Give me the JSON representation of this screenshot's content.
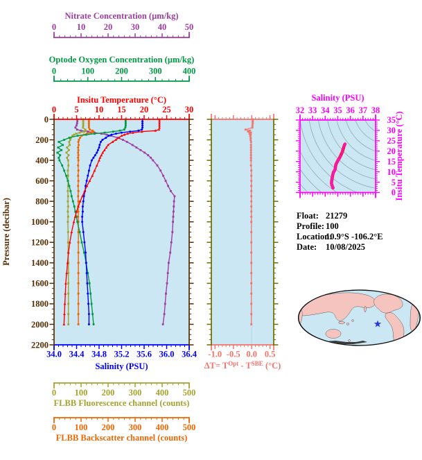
{
  "figure": {
    "info": {
      "lines": [
        {
          "label": "Float:",
          "value": "21279"
        },
        {
          "label": "Profile:",
          "value": "100"
        },
        {
          "label": "Location:",
          "value": "10.9°S -106.2°E"
        },
        {
          "label": "Date:",
          "value": "10/08/2025"
        }
      ]
    },
    "colors": {
      "plot_background": "#cbe7f3",
      "temperature": "#ff0000",
      "salinity": "#0000ff",
      "oxygen": "#009944",
      "nitrate": "#a03ca0",
      "fluorescence": "#a3a32e",
      "backscatter": "#ee6600",
      "pressure_axis": "#552b00",
      "delta": "#f4736b",
      "delta_frame": "#6b6e00",
      "ts_frame": "#ff00ff",
      "ts_line": "#e8133c",
      "ts_marker": "#ff14b4",
      "contour": "#90a8b2",
      "map_ocean": "#cbe7f3",
      "map_land": "#f5c4bf",
      "map_outline": "#111111",
      "star": "#2135e0",
      "info_text": "#000000"
    }
  },
  "chart_data": [
    {
      "type": "line",
      "title": "",
      "description": "Depth profiles of six float sensor variables sharing one pressure axis",
      "y_axis": {
        "label": "Pressure (decibar)",
        "range": [
          0,
          2200
        ],
        "tick_values": [
          0,
          200,
          400,
          600,
          800,
          1000,
          1200,
          1400,
          1600,
          1800,
          2000,
          2200
        ],
        "tick_labels": [
          "0",
          "200",
          "400",
          "600",
          "800",
          "1000",
          "1200",
          "1400",
          "1600",
          "1800",
          "2000",
          "2200"
        ],
        "minor_step": 50
      },
      "pressure": [
        0,
        20,
        40,
        60,
        80,
        100,
        110,
        120,
        130,
        140,
        150,
        160,
        180,
        200,
        220,
        250,
        275,
        300,
        325,
        350,
        375,
        400,
        450,
        500,
        550,
        600,
        650,
        700,
        750,
        800,
        850,
        900,
        950,
        1000,
        1100,
        1200,
        1300,
        1400,
        1500,
        1600,
        1700,
        1800,
        1900,
        2000
      ],
      "series": [
        {
          "id": "temperature",
          "name": "Insitu Temperature (°C)",
          "color": "#ff0000",
          "marker": "triangle",
          "axis_range": [
            0,
            30
          ],
          "tick_values": [
            0,
            5,
            10,
            15,
            20,
            25,
            30
          ],
          "tick_labels": [
            "0",
            "5",
            "10",
            "15",
            "20",
            "25",
            "30"
          ],
          "minor_step": 1,
          "values": [
            23.4,
            23.4,
            23.4,
            23.4,
            23.4,
            23.3,
            22.5,
            19.5,
            17.5,
            16.3,
            15.6,
            15.0,
            14.4,
            13.7,
            13.0,
            12.0,
            11.6,
            11.2,
            10.8,
            10.5,
            10.2,
            10.0,
            9.5,
            9.0,
            8.5,
            7.9,
            7.3,
            6.8,
            6.3,
            5.8,
            5.4,
            5.0,
            4.7,
            4.4,
            3.9,
            3.5,
            3.2,
            3.0,
            2.8,
            2.6,
            2.5,
            2.4,
            2.3,
            2.2
          ]
        },
        {
          "id": "salinity",
          "name": "Salinity (PSU)",
          "color": "#0000ff",
          "marker": "circle",
          "axis_range": [
            34.0,
            36.4
          ],
          "tick_values": [
            34.0,
            34.4,
            34.8,
            35.2,
            35.6,
            36.0,
            36.4
          ],
          "tick_labels": [
            "34.0",
            "34.4",
            "34.8",
            "35.2",
            "35.6",
            "36.0",
            "36.4"
          ],
          "minor_step": 0.08,
          "values": [
            35.57,
            35.57,
            35.57,
            35.57,
            35.57,
            35.56,
            35.5,
            35.35,
            35.2,
            35.1,
            35.02,
            34.97,
            34.92,
            34.86,
            34.83,
            34.81,
            34.8,
            34.78,
            34.76,
            34.73,
            34.7,
            34.67,
            34.64,
            34.62,
            34.6,
            34.58,
            34.56,
            34.55,
            34.53,
            34.52,
            34.51,
            34.51,
            34.5,
            34.5,
            34.52,
            34.54,
            34.56,
            34.57,
            34.58,
            34.59,
            34.6,
            34.61,
            34.62,
            34.62
          ]
        },
        {
          "id": "oxygen",
          "name": "Optode Oxygen Concentration (µm/kg)",
          "color": "#009944",
          "marker": "square",
          "axis_range": [
            0,
            400
          ],
          "tick_values": [
            0,
            100,
            200,
            300,
            400
          ],
          "tick_labels": [
            "0",
            "100",
            "200",
            "300",
            "400"
          ],
          "minor_step": 20,
          "values": [
            212,
            212,
            212,
            212,
            211,
            208,
            195,
            175,
            150,
            120,
            95,
            70,
            45,
            30,
            14,
            26,
            12,
            22,
            10,
            18,
            14,
            16,
            24,
            30,
            36,
            41,
            45,
            49,
            52,
            56,
            60,
            63,
            66,
            69,
            76,
            82,
            89,
            95,
            100,
            105,
            108,
            111,
            114,
            117
          ]
        },
        {
          "id": "nitrate",
          "name": "Nitrate Concentration (µm/kg)",
          "color": "#a03ca0",
          "marker": "square",
          "axis_range": [
            0,
            50
          ],
          "tick_values": [
            0,
            10,
            20,
            30,
            40,
            50
          ],
          "tick_labels": [
            "0",
            "10",
            "20",
            "30",
            "40",
            "50"
          ],
          "minor_step": 2,
          "values": [
            8.6,
            8.6,
            8.5,
            8.3,
            7.9,
            8.5,
            10.0,
            12.5,
            15.0,
            17.5,
            19.5,
            21.0,
            23.5,
            25.5,
            27.0,
            29.0,
            30.5,
            32.0,
            33.5,
            34.8,
            35.8,
            36.6,
            38.2,
            39.4,
            40.4,
            41.3,
            42.2,
            43.2,
            44.6,
            44.4,
            44.3,
            44.2,
            44.1,
            44.0,
            43.8,
            43.4,
            43.0,
            42.4,
            42.1,
            41.8,
            41.4,
            41.1,
            40.8,
            40.3
          ]
        },
        {
          "id": "fluorescence",
          "name": "FLBB Fluorescence channel (counts)",
          "color": "#a3a32e",
          "marker": "square",
          "axis_range": [
            0,
            500
          ],
          "tick_values": [
            0,
            100,
            200,
            300,
            400,
            500
          ],
          "tick_labels": [
            "0",
            "100",
            "200",
            "300",
            "400",
            "500"
          ],
          "minor_step": 20,
          "values": [
            108,
            108,
            108,
            108,
            107,
            115,
            118,
            112,
            95,
            82,
            74,
            68,
            62,
            60,
            56,
            58,
            48,
            55,
            46,
            54,
            48,
            52,
            53,
            51,
            52,
            51,
            52,
            51,
            52,
            51,
            52,
            51,
            52,
            51,
            52,
            52,
            52,
            53,
            53,
            53,
            53,
            53,
            53,
            53
          ]
        },
        {
          "id": "backscatter",
          "name": "FLBB Backscatter channel (counts)",
          "color": "#ee6600",
          "marker": "square",
          "axis_range": [
            0,
            500
          ],
          "tick_values": [
            0,
            100,
            200,
            300,
            400,
            500
          ],
          "tick_labels": [
            "0",
            "100",
            "200",
            "300",
            "400",
            "500"
          ],
          "minor_step": 20,
          "values": [
            129,
            129,
            129,
            129,
            129,
            132,
            142,
            146,
            138,
            122,
            110,
            102,
            96,
            92,
            90,
            91,
            89,
            90,
            89,
            90,
            89,
            90,
            89,
            90,
            89,
            90,
            89,
            90,
            89,
            90,
            89,
            90,
            89,
            90,
            90,
            90,
            90,
            90,
            90,
            90,
            90,
            90,
            90,
            90
          ]
        }
      ]
    },
    {
      "type": "line",
      "description": "Temperature difference between optode and SBE sensors vs pressure",
      "uses_pressure_of": "main",
      "x_axis": {
        "label_parts": [
          "ΔT= T",
          "Opt",
          " - T",
          "SBE",
          " (°C)"
        ],
        "range": [
          -1.0,
          0.5
        ],
        "tick_values": [
          -1.0,
          -0.5,
          0.0,
          0.5
        ],
        "tick_labels": [
          "-1.0",
          "-0.5",
          "0.0",
          "0.5"
        ],
        "minor_step": 0.1
      },
      "values": [
        0.03,
        0.03,
        0.03,
        0.02,
        0.02,
        -0.17,
        -0.05,
        -0.1,
        -0.02,
        -0.06,
        -0.03,
        -0.04,
        -0.03,
        -0.03,
        -0.02,
        -0.02,
        -0.02,
        -0.02,
        -0.02,
        -0.02,
        -0.02,
        -0.02,
        -0.02,
        -0.01,
        -0.01,
        -0.01,
        -0.01,
        -0.01,
        -0.01,
        -0.01,
        -0.01,
        -0.01,
        -0.01,
        -0.01,
        -0.01,
        -0.01,
        -0.01,
        -0.01,
        -0.01,
        -0.01,
        -0.01,
        -0.01,
        -0.01,
        -0.01
      ]
    },
    {
      "type": "scatter",
      "description": "T-S diagram with isopycnal contours; points derived from salinity and temperature profiles",
      "derived_from": [
        "salinity",
        "temperature"
      ],
      "x_axis": {
        "label": "Salinity (PSU)",
        "range": [
          32,
          38
        ],
        "tick_values": [
          32,
          33,
          34,
          35,
          36,
          37,
          38
        ],
        "tick_labels": [
          "32",
          "33",
          "34",
          "35",
          "36",
          "37",
          "38"
        ],
        "minor_step": 0.2
      },
      "y_axis": {
        "label": "Insitu Temperature (°C)",
        "range": [
          0,
          35
        ],
        "tick_values": [
          0,
          5,
          10,
          15,
          20,
          25,
          30,
          35
        ],
        "tick_labels": [
          "0",
          "5",
          "10",
          "15",
          "20",
          "25",
          "30",
          "35"
        ],
        "minor_step": 1
      }
    }
  ]
}
